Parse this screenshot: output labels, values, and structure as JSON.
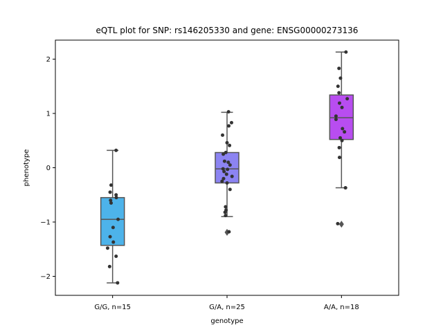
{
  "chart_data": {
    "type": "box",
    "title": "eQTL plot for SNP: rs146205330 and gene: ENSG00000273136",
    "xlabel": "genotype",
    "ylabel": "phenotype",
    "ylim": [
      -2.35,
      2.35
    ],
    "yticks": [
      -2,
      -1,
      0,
      1,
      2
    ],
    "ytick_labels": [
      "−2",
      "−1",
      "0",
      "1",
      "2"
    ],
    "categories": [
      "G/G, n=15",
      "G/A, n=25",
      "A/A, n=18"
    ],
    "colors": [
      "#4db3ea",
      "#8c84f2",
      "#b84df0"
    ],
    "box_stroke": "#555555",
    "point_color": "#333333",
    "boxes": [
      {
        "label": "G/G, n=15",
        "q1": -1.43,
        "median": -0.95,
        "q3": -0.55,
        "whisker_low": -2.12,
        "whisker_high": 0.32,
        "outliers": []
      },
      {
        "label": "G/A, n=25",
        "q1": -0.28,
        "median": -0.02,
        "q3": 0.28,
        "whisker_low": -0.9,
        "whisker_high": 1.02,
        "outliers": [
          -1.19
        ]
      },
      {
        "label": "A/A, n=18",
        "q1": 0.52,
        "median": 0.92,
        "q3": 1.34,
        "whisker_low": -0.37,
        "whisker_high": 2.13,
        "outliers": [
          -1.04
        ]
      }
    ],
    "points": [
      [
        [
          0.14,
          0.32
        ],
        [
          -0.06,
          -0.32
        ],
        [
          -0.1,
          -0.45
        ],
        [
          0.14,
          -0.5
        ],
        [
          0.15,
          -0.55
        ],
        [
          -0.08,
          -0.6
        ],
        [
          -0.06,
          -0.65
        ],
        [
          0.22,
          -0.95
        ],
        [
          0.02,
          -1.1
        ],
        [
          -0.1,
          -1.27
        ],
        [
          0.03,
          -1.37
        ],
        [
          -0.2,
          -1.48
        ],
        [
          0.14,
          -1.63
        ],
        [
          -0.12,
          -1.82
        ],
        [
          0.2,
          -2.12
        ]
      ],
      [
        [
          0.06,
          1.03
        ],
        [
          0.18,
          0.83
        ],
        [
          0.07,
          0.77
        ],
        [
          -0.18,
          0.6
        ],
        [
          0.0,
          0.46
        ],
        [
          0.1,
          0.41
        ],
        [
          -0.05,
          0.28
        ],
        [
          -0.15,
          0.25
        ],
        [
          0.05,
          0.1
        ],
        [
          -0.1,
          0.12
        ],
        [
          0.12,
          0.05
        ],
        [
          0.02,
          -0.03
        ],
        [
          -0.16,
          -0.02
        ],
        [
          -0.12,
          -0.07
        ],
        [
          -0.02,
          -0.12
        ],
        [
          0.2,
          -0.16
        ],
        [
          -0.14,
          -0.2
        ],
        [
          -0.2,
          -0.25
        ],
        [
          0.0,
          -0.28
        ],
        [
          0.12,
          -0.4
        ],
        [
          -0.06,
          -0.72
        ],
        [
          -0.04,
          -0.78
        ],
        [
          -0.08,
          -0.82
        ],
        [
          -0.06,
          -0.88
        ],
        [
          0.08,
          -1.18
        ]
      ],
      [
        [
          0.18,
          2.13
        ],
        [
          -0.1,
          1.83
        ],
        [
          -0.04,
          1.65
        ],
        [
          -0.14,
          1.5
        ],
        [
          -0.1,
          1.38
        ],
        [
          0.23,
          1.27
        ],
        [
          -0.08,
          1.19
        ],
        [
          0.02,
          1.11
        ],
        [
          -0.22,
          0.95
        ],
        [
          -0.22,
          0.89
        ],
        [
          0.04,
          0.72
        ],
        [
          0.12,
          0.66
        ],
        [
          -0.05,
          0.55
        ],
        [
          0.02,
          0.5
        ],
        [
          -0.09,
          0.37
        ],
        [
          -0.08,
          0.19
        ],
        [
          0.16,
          -0.37
        ],
        [
          -0.15,
          -1.03
        ]
      ]
    ]
  }
}
